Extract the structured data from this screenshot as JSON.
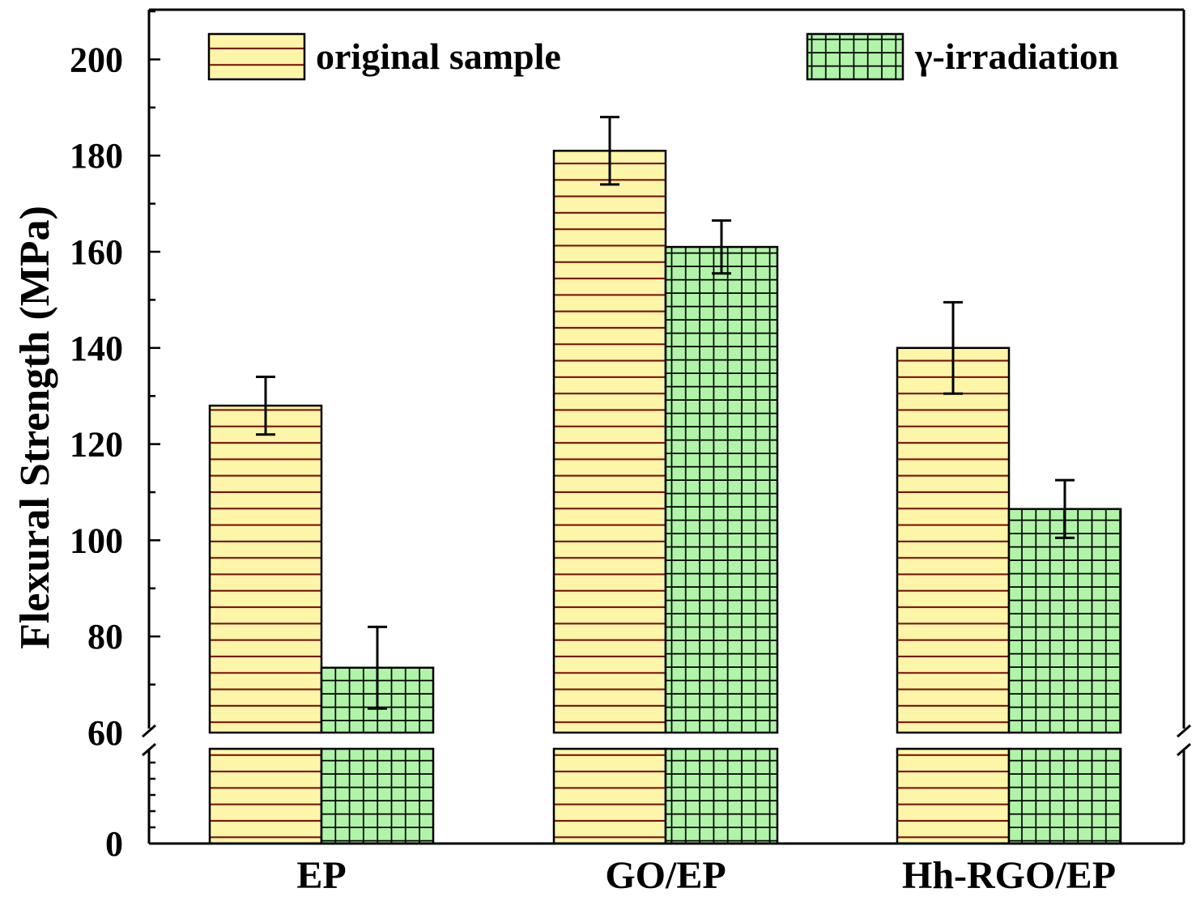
{
  "chart_data": {
    "type": "bar",
    "ylabel": "Flexural Strength (MPa)",
    "xlabel": "",
    "categories": [
      "EP",
      "GO/EP",
      "Hh-RGO/EP"
    ],
    "series": [
      {
        "name": "original sample",
        "values": [
          128,
          181,
          140
        ],
        "errors": [
          6,
          7,
          9.5
        ],
        "color": "#fdf6a8",
        "pattern": "horizontal-lines",
        "pattern_color": "#7a1010"
      },
      {
        "name": "γ-irradiation",
        "values": [
          73.5,
          161,
          106.5
        ],
        "errors": [
          8.5,
          5.5,
          6
        ],
        "color": "#b0f4a8",
        "pattern": "grid",
        "pattern_color": "#000000"
      }
    ],
    "axis_break": {
      "lower": [
        0,
        60
      ],
      "upper": [
        60,
        210
      ]
    },
    "ylim": [
      0,
      210
    ],
    "ytick_values": [
      0,
      60,
      80,
      100,
      120,
      140,
      160,
      180,
      200
    ],
    "ytick_labels": [
      "0",
      "60",
      "80",
      "100",
      "120",
      "140",
      "160",
      "180",
      "200"
    ],
    "legend": {
      "placement": "top",
      "entries": [
        "original sample",
        "γ-irradiation"
      ]
    }
  }
}
